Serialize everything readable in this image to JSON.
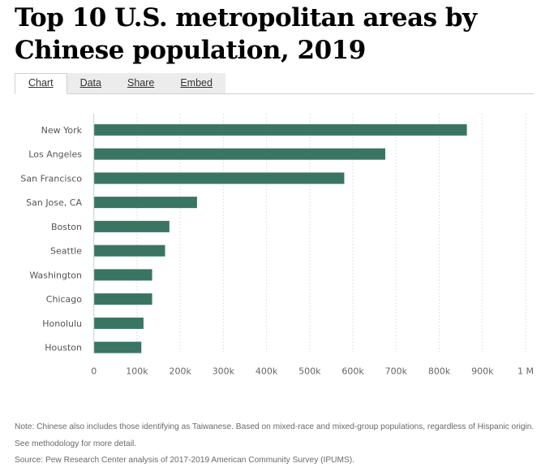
{
  "header": {
    "title": "Top 10 U.S. metropolitan areas by Chinese population, 2019"
  },
  "tabs": [
    {
      "label": "Chart",
      "active": true
    },
    {
      "label": "Data",
      "active": false
    },
    {
      "label": "Share",
      "active": false
    },
    {
      "label": "Embed",
      "active": false
    }
  ],
  "chart_data": {
    "type": "bar",
    "orientation": "horizontal",
    "title": "Top 10 U.S. metropolitan areas by Chinese population, 2019",
    "xlabel": "",
    "ylabel": "",
    "categories": [
      "New York",
      "Los Angeles",
      "San Francisco",
      "San Jose, CA",
      "Boston",
      "Seattle",
      "Washington",
      "Chicago",
      "Honolulu",
      "Houston"
    ],
    "values": [
      864000,
      675000,
      580000,
      239000,
      175000,
      165000,
      135000,
      135000,
      115000,
      110000
    ],
    "xlim": [
      0,
      1000000
    ],
    "xticks": [
      0,
      100000,
      200000,
      300000,
      400000,
      500000,
      600000,
      700000,
      800000,
      900000,
      1000000
    ],
    "xtick_labels": [
      "0",
      "100k",
      "200k",
      "300k",
      "400k",
      "500k",
      "600k",
      "700k",
      "800k",
      "900k",
      "1 M"
    ],
    "grid": true,
    "legend": "none",
    "bar_color": "#3a7563"
  },
  "notes": {
    "note": "Note: Chinese also includes those identifying as Taiwanese. Based on mixed-race and mixed-group populations, regardless of Hispanic origin. See methodology for more detail.",
    "source": "Source: Pew Research Center analysis of 2017-2019 American Community Survey (IPUMS)."
  }
}
